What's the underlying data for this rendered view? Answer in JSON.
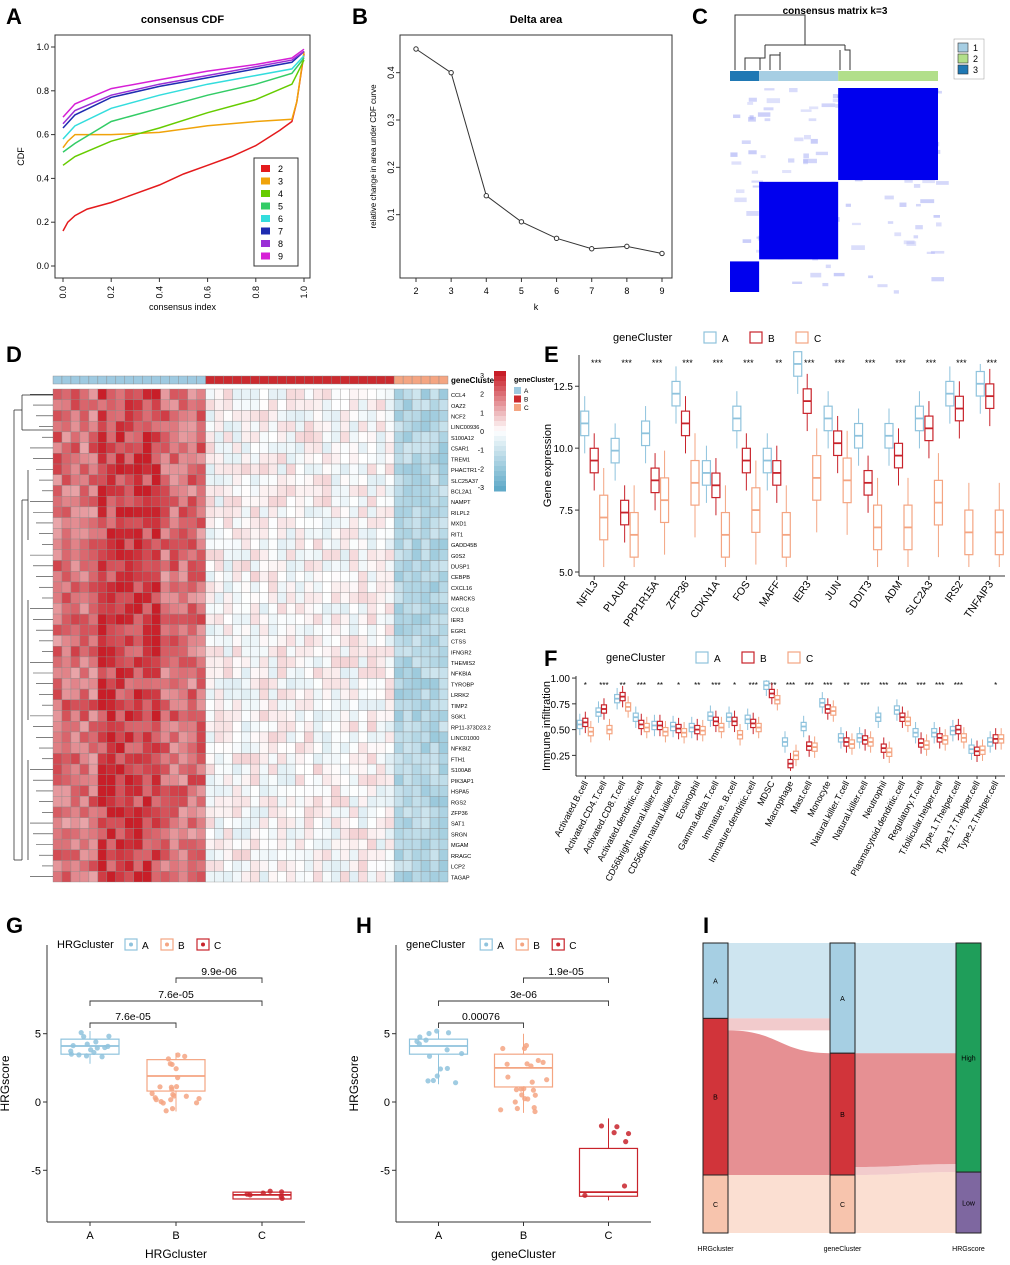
{
  "panel_letters": [
    "A",
    "B",
    "C",
    "D",
    "E",
    "F",
    "G",
    "H",
    "I"
  ],
  "chart_data": [
    {
      "panel": "A",
      "type": "line",
      "title": "consensus CDF",
      "xlabel": "consensus index",
      "ylabel": "CDF",
      "xlim": [
        0,
        1
      ],
      "ylim": [
        0,
        1
      ],
      "xticks": [
        0.0,
        0.2,
        0.4,
        0.6,
        0.8,
        1.0
      ],
      "xtick_labels": [
        "0.0",
        "0.2",
        "0.4",
        "0.6",
        "0.8",
        "1.0"
      ],
      "yticks": [
        0.0,
        0.2,
        0.4,
        0.6,
        0.8,
        1.0
      ],
      "ytick_labels": [
        "0.0",
        "0.2",
        "0.4",
        "0.6",
        "0.8",
        "1.0"
      ],
      "legend_position": "right-middle",
      "series": [
        {
          "name": "2",
          "color": "#e41a1c",
          "x": [
            0,
            0.02,
            0.05,
            0.1,
            0.2,
            0.3,
            0.4,
            0.5,
            0.6,
            0.7,
            0.8,
            0.9,
            0.95,
            0.97,
            1.0
          ],
          "y": [
            0.16,
            0.2,
            0.23,
            0.26,
            0.29,
            0.33,
            0.37,
            0.42,
            0.46,
            0.5,
            0.55,
            0.62,
            0.66,
            0.75,
            0.97
          ]
        },
        {
          "name": "3",
          "color": "#f0a30a",
          "x": [
            0,
            0.02,
            0.05,
            0.2,
            0.4,
            0.6,
            0.8,
            0.95,
            0.97,
            1.0
          ],
          "y": [
            0.54,
            0.57,
            0.6,
            0.6,
            0.61,
            0.64,
            0.66,
            0.67,
            0.75,
            0.98
          ]
        },
        {
          "name": "4",
          "color": "#66cc00",
          "x": [
            0,
            0.05,
            0.2,
            0.4,
            0.6,
            0.8,
            0.95,
            1.0
          ],
          "y": [
            0.46,
            0.5,
            0.57,
            0.63,
            0.7,
            0.76,
            0.83,
            0.94
          ]
        },
        {
          "name": "5",
          "color": "#33cc66",
          "x": [
            0,
            0.05,
            0.2,
            0.4,
            0.6,
            0.8,
            0.95,
            1.0
          ],
          "y": [
            0.52,
            0.56,
            0.66,
            0.72,
            0.78,
            0.83,
            0.88,
            0.95
          ]
        },
        {
          "name": "6",
          "color": "#33dddd",
          "x": [
            0,
            0.05,
            0.2,
            0.4,
            0.6,
            0.8,
            0.95,
            1.0
          ],
          "y": [
            0.58,
            0.64,
            0.72,
            0.78,
            0.83,
            0.87,
            0.9,
            0.96
          ]
        },
        {
          "name": "7",
          "color": "#1e2cb0",
          "x": [
            0,
            0.05,
            0.2,
            0.4,
            0.6,
            0.8,
            0.95,
            1.0
          ],
          "y": [
            0.63,
            0.69,
            0.77,
            0.82,
            0.86,
            0.9,
            0.93,
            0.98
          ]
        },
        {
          "name": "8",
          "color": "#9a2fd6",
          "x": [
            0,
            0.05,
            0.2,
            0.4,
            0.6,
            0.8,
            0.95,
            1.0
          ],
          "y": [
            0.65,
            0.71,
            0.78,
            0.83,
            0.87,
            0.91,
            0.94,
            0.98
          ]
        },
        {
          "name": "9",
          "color": "#d61fd6",
          "x": [
            0,
            0.05,
            0.2,
            0.4,
            0.6,
            0.8,
            0.95,
            1.0
          ],
          "y": [
            0.68,
            0.74,
            0.81,
            0.85,
            0.89,
            0.92,
            0.95,
            0.99
          ]
        }
      ]
    },
    {
      "panel": "B",
      "type": "line",
      "title": "Delta area",
      "xlabel": "k",
      "ylabel": "relative change in area under CDF curve",
      "x": [
        2,
        3,
        4,
        5,
        6,
        7,
        8,
        9
      ],
      "y": [
        0.45,
        0.4,
        0.14,
        0.085,
        0.05,
        0.028,
        0.033,
        0.018
      ],
      "xlim": [
        2,
        9
      ],
      "ylim": [
        0.0,
        0.45
      ],
      "xticks": [
        2,
        3,
        4,
        5,
        6,
        7,
        8,
        9
      ],
      "yticks": [
        0.1,
        0.2,
        0.3,
        0.4
      ],
      "ytick_labels": [
        "0.1",
        "0.2",
        "0.3",
        "0.4"
      ]
    },
    {
      "panel": "C",
      "type": "heatmap",
      "title": "consensus matrix k=3",
      "legend": [
        {
          "label": "1",
          "color": "#a6cee3"
        },
        {
          "label": "2",
          "color": "#b2df8a"
        },
        {
          "label": "3",
          "color": "#1f78b4"
        }
      ],
      "cluster_fractions": [
        {
          "cluster": "3",
          "fraction": 0.14
        },
        {
          "cluster": "1",
          "fraction": 0.38
        },
        {
          "cluster": "2",
          "fraction": 0.48
        }
      ],
      "block_color": "#0000ee"
    },
    {
      "panel": "D",
      "type": "heatmap",
      "annotation_label": "geneCluster",
      "legend_title": "geneCluster",
      "legend": [
        {
          "label": "A",
          "color": "#9ecae1"
        },
        {
          "label": "B",
          "color": "#cb2a2f"
        },
        {
          "label": "C",
          "color": "#f4a582"
        }
      ],
      "colorbar_ticks": [
        "3",
        "2",
        "1",
        "0",
        "-1",
        "-2",
        "-3"
      ],
      "colorbar_range": [
        -3,
        3
      ],
      "cluster_sizes": {
        "A": 17,
        "B": 21,
        "C": 6
      },
      "genes": [
        "CCL4",
        "OAZ2",
        "NCF2",
        "LINC00936",
        "S100A12",
        "C5AR1",
        "TREM1",
        "PHACTR1",
        "SLC25A37",
        "BCL2A1",
        "NAMPT",
        "RILPL2",
        "MXD1",
        "RIT1",
        "GADD45B",
        "G0S2",
        "DUSP1",
        "CEBPB",
        "CXCL16",
        "MARCKS",
        "CXCL8",
        "IER3",
        "EGR1",
        "CTSS",
        "IFNGR2",
        "THEMIS2",
        "NFKBIA",
        "TYROBP",
        "LRRK2",
        "TIMP2",
        "SGK1",
        "RP11-373D23.2",
        "LINC01000",
        "NFKBIZ",
        "FTH1",
        "S100A8",
        "PIK3AP1",
        "HSPA5",
        "RGS2",
        "ZFP36",
        "SAT1",
        "SRGN",
        "MGAM",
        "RRAGC",
        "LCP2",
        "TAGAP"
      ]
    },
    {
      "panel": "E",
      "type": "box",
      "legend_title": "geneCluster",
      "groups": [
        "A",
        "B",
        "C"
      ],
      "group_colors": [
        "#8fc3dd",
        "#c8232b",
        "#f4a582"
      ],
      "ylabel": "Gene expression",
      "ylim": [
        5.0,
        13.6
      ],
      "yticks": [
        5.0,
        7.5,
        10.0,
        12.5
      ],
      "ytick_labels": [
        "5.0",
        "7.5",
        "10.0",
        "12.5"
      ],
      "categories": [
        "NFIL3",
        "PLAUR",
        "PPP1R15A",
        "ZFP36",
        "CDKN1A",
        "FOS",
        "MAFF",
        "IER3",
        "JUN",
        "DDIT3",
        "ADM",
        "SLC2A3",
        "IRS2",
        "TNFAIP3"
      ],
      "significance": [
        "***",
        "***",
        "***",
        "***",
        "***",
        "***",
        "**",
        "***",
        "***",
        "***",
        "***",
        "***",
        "***",
        "***"
      ],
      "medians": {
        "A": [
          11.0,
          9.9,
          10.6,
          12.2,
          9.0,
          11.2,
          9.5,
          13.4,
          11.2,
          10.5,
          10.5,
          11.2,
          12.2,
          12.6
        ],
        "B": [
          9.5,
          7.4,
          8.7,
          11.0,
          8.5,
          9.5,
          9.0,
          11.9,
          10.2,
          8.6,
          9.7,
          10.8,
          11.6,
          12.1
        ],
        "C": [
          7.2,
          6.5,
          7.9,
          8.6,
          6.5,
          7.5,
          6.5,
          8.8,
          8.7,
          6.8,
          6.8,
          7.8,
          6.6,
          6.6
        ]
      }
    },
    {
      "panel": "F",
      "type": "box",
      "legend_title": "geneCluster",
      "groups": [
        "A",
        "B",
        "C"
      ],
      "group_colors": [
        "#8fc3dd",
        "#c8232b",
        "#f4a582"
      ],
      "ylabel": "Immune infiltration",
      "ylim": [
        0.05,
        1.02
      ],
      "yticks": [
        0.25,
        0.5,
        0.75,
        1.0
      ],
      "ytick_labels": [
        "0.25",
        "0.50",
        "0.75",
        "1.00"
      ],
      "categories": [
        "Activated.B.cell",
        "Activated.CD4.T.cell",
        "Activated.CD8.T.cell",
        "Activated.dendritic.cell",
        "CD56bright.natural.killer.cell",
        "CD56dim.natural.killer.cell",
        "Eosinophil",
        "Gamma.delta.T.cell",
        "Immature..B.cell",
        "Immature.dendritic.cell",
        "MDSC",
        "Macrophage",
        "Mast.cell",
        "Monocyte",
        "Natural.killer.T.cell",
        "Natural.killer.cell",
        "Neutrophil",
        "Plasmacytoid.dendritic.cell",
        "Regulatory.T.cell",
        "T.follicular.helper.cell",
        "Type.1.T.helper.cell",
        "Type.17.T.helper.cell",
        "Type.2.T.helper.cell"
      ],
      "significance": [
        "*",
        "***",
        "**",
        "***",
        "**",
        "*",
        "**",
        "***",
        "*",
        "***",
        "***",
        "***",
        "***",
        "***",
        "**",
        "***",
        "***",
        "***",
        "***",
        "***",
        "***",
        "",
        "*"
      ],
      "medians": {
        "A": [
          0.55,
          0.67,
          0.8,
          0.62,
          0.54,
          0.53,
          0.52,
          0.63,
          0.62,
          0.6,
          0.93,
          0.38,
          0.53,
          0.76,
          0.42,
          0.42,
          0.62,
          0.69,
          0.47,
          0.47,
          0.49,
          0.31,
          0.38
        ],
        "B": [
          0.57,
          0.7,
          0.82,
          0.55,
          0.54,
          0.51,
          0.5,
          0.58,
          0.58,
          0.56,
          0.85,
          0.17,
          0.34,
          0.7,
          0.38,
          0.4,
          0.32,
          0.62,
          0.37,
          0.42,
          0.5,
          0.29,
          0.41
        ],
        "C": [
          0.48,
          0.5,
          0.72,
          0.52,
          0.48,
          0.47,
          0.49,
          0.52,
          0.45,
          0.52,
          0.79,
          0.25,
          0.33,
          0.68,
          0.36,
          0.38,
          0.28,
          0.58,
          0.35,
          0.4,
          0.42,
          0.3,
          0.41
        ]
      }
    },
    {
      "panel": "G",
      "type": "box",
      "legend_title": "HRGcluster",
      "groups": [
        "A",
        "B",
        "C"
      ],
      "group_colors": [
        "#8fc3dd",
        "#f4a582",
        "#c8232b"
      ],
      "xlabel": "HRGcluster",
      "ylabel": "HRGscore",
      "ylim": [
        -8.2,
        11.2
      ],
      "yticks": [
        -5,
        0,
        5
      ],
      "ytick_labels": [
        "-5",
        "0",
        "5"
      ],
      "boxes": [
        {
          "group": "A",
          "q1": 3.5,
          "median": 4.1,
          "q3": 4.6,
          "min": 2.8,
          "max": 5.2
        },
        {
          "group": "B",
          "q1": 0.8,
          "median": 1.9,
          "q3": 3.1,
          "min": -0.7,
          "max": 3.6
        },
        {
          "group": "C",
          "q1": -7.1,
          "median": -6.8,
          "q3": -6.6,
          "min": -7.1,
          "max": -6.5
        }
      ],
      "comparisons": [
        {
          "from": "B",
          "to": "C",
          "p": "9.9e-06"
        },
        {
          "from": "A",
          "to": "C",
          "p": "7.6e-05"
        },
        {
          "from": "A",
          "to": "B",
          "p": "7.6e-05"
        }
      ]
    },
    {
      "panel": "H",
      "type": "box",
      "legend_title": "geneCluster",
      "groups": [
        "A",
        "B",
        "C"
      ],
      "group_colors": [
        "#8fc3dd",
        "#f4a582",
        "#c8232b"
      ],
      "xlabel": "geneCluster",
      "ylabel": "HRGscore",
      "ylim": [
        -8.2,
        11.2
      ],
      "yticks": [
        -5,
        0,
        5
      ],
      "ytick_labels": [
        "-5",
        "0",
        "5"
      ],
      "boxes": [
        {
          "group": "A",
          "q1": 3.5,
          "median": 4.1,
          "q3": 4.6,
          "min": 1.3,
          "max": 5.2
        },
        {
          "group": "B",
          "q1": 1.1,
          "median": 2.5,
          "q3": 3.5,
          "min": -0.8,
          "max": 5.0
        },
        {
          "group": "C",
          "q1": -6.9,
          "median": -6.6,
          "q3": -3.4,
          "min": -7.2,
          "max": -1.2
        }
      ],
      "comparisons": [
        {
          "from": "B",
          "to": "C",
          "p": "1.9e-05"
        },
        {
          "from": "A",
          "to": "C",
          "p": "3e-06"
        },
        {
          "from": "A",
          "to": "B",
          "p": "0.00076"
        }
      ]
    },
    {
      "panel": "I",
      "type": "sankey",
      "axes": [
        "HRGcluster",
        "geneCluster",
        "HRGscore"
      ],
      "nodes": {
        "HRGcluster": [
          {
            "label": "A",
            "fraction": 0.26,
            "color": "#a6cfe3"
          },
          {
            "label": "B",
            "fraction": 0.54,
            "color": "#d1343a"
          },
          {
            "label": "C",
            "fraction": 0.2,
            "color": "#f7c4ad"
          }
        ],
        "geneCluster": [
          {
            "label": "A",
            "fraction": 0.38,
            "color": "#a6cfe3"
          },
          {
            "label": "B",
            "fraction": 0.42,
            "color": "#d1343a"
          },
          {
            "label": "C",
            "fraction": 0.2,
            "color": "#f7c4ad"
          }
        ],
        "HRGscore": [
          {
            "label": "High",
            "fraction": 0.79,
            "color": "#1f9e5a"
          },
          {
            "label": "Low",
            "fraction": 0.21,
            "color": "#7e67a0"
          }
        ]
      }
    }
  ]
}
